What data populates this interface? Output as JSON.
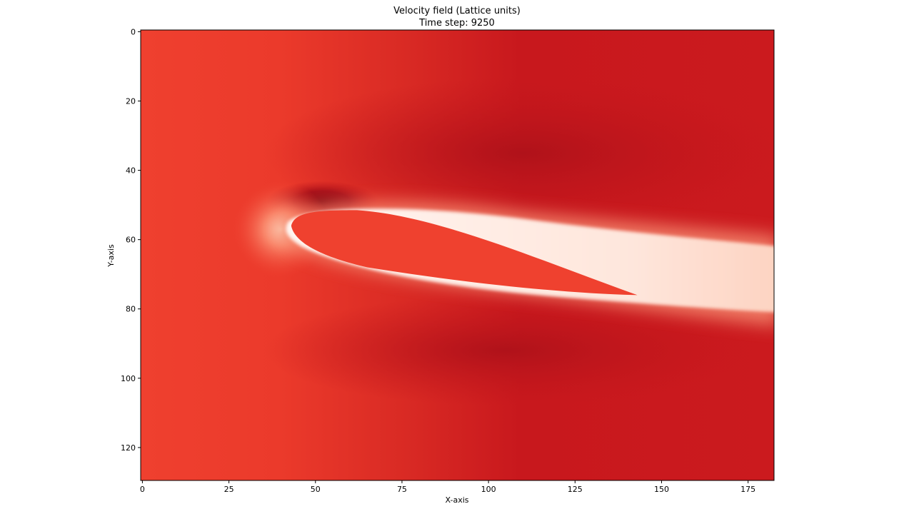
{
  "chart_data": {
    "type": "heatmap",
    "title": "Velocity field (Lattice units)",
    "subtitle": "Time step: 9250",
    "xlabel": "X-axis",
    "ylabel": "Y-axis",
    "xlim": [
      -0.5,
      182.5
    ],
    "ylim": [
      129.5,
      -0.5
    ],
    "x_ticks": [
      0,
      25,
      50,
      75,
      100,
      125,
      150,
      175
    ],
    "y_ticks": [
      0,
      20,
      40,
      60,
      80,
      100,
      120
    ],
    "grid": false,
    "colormap": "Reds",
    "colors": {
      "free_stream": "#e8382a",
      "upstream": "#ef402f",
      "fast_region": "#c3161c",
      "darkest": "#8e0d14",
      "wake": "#fff2ec",
      "airfoil_interior": "#ef412f"
    },
    "features": {
      "airfoil_leading_edge": [
        42,
        56
      ],
      "airfoil_trailing_edge": [
        145,
        76
      ],
      "stagnation_point": [
        40,
        57
      ],
      "upper_dark_region": [
        48,
        49
      ]
    }
  }
}
